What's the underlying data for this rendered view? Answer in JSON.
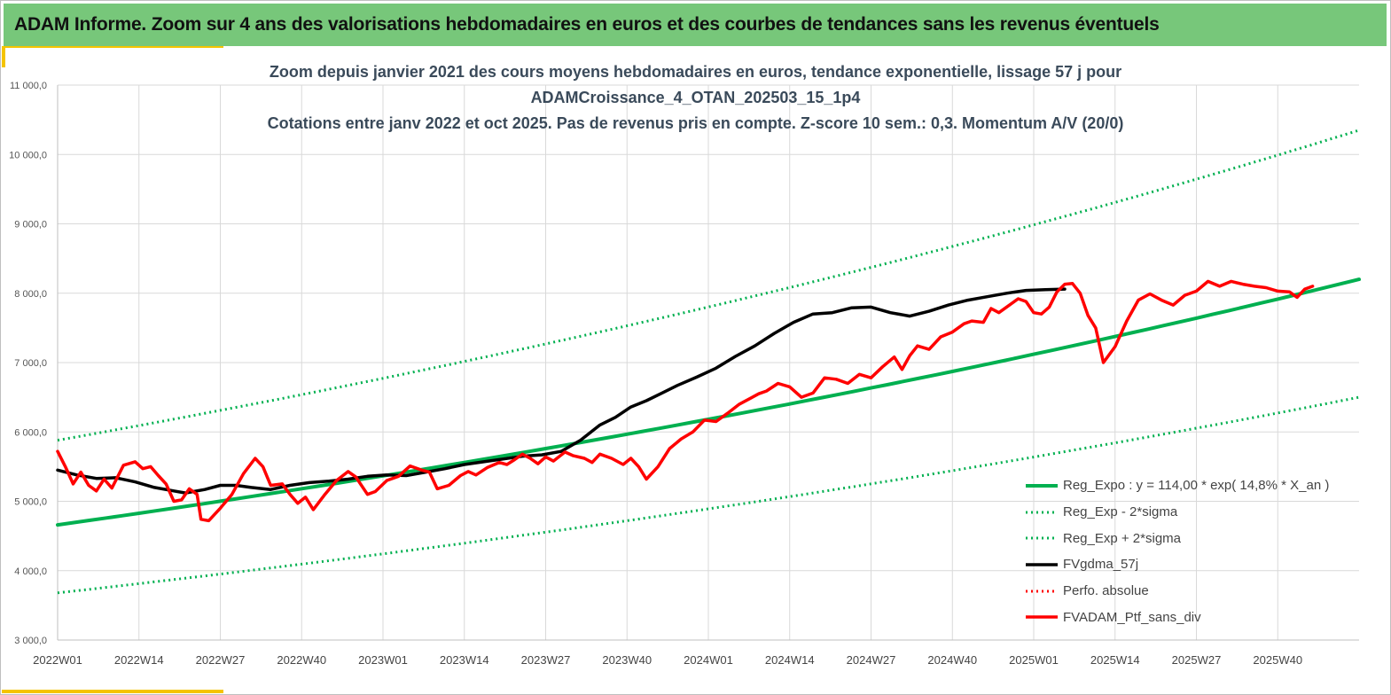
{
  "header": {
    "title": "ADAM Informe. Zoom sur 4 ans des valorisations hebdomadaires en euros et des courbes de tendances sans les revenus éventuels"
  },
  "colors": {
    "banner": "#77c77a",
    "trend": "#00b050",
    "smooth": "#000000",
    "portfolio": "#ff0000",
    "accent": "#f5c400"
  },
  "chart_data": {
    "type": "line",
    "title_lines": [
      "Zoom depuis janvier 2021 des cours moyens hebdomadaires  en euros, tendance exponentielle, lissage 57 j pour",
      "ADAMCroissance_4_OTAN_202503_15_1p4",
      "Cotations  entre janv 2022 et oct 2025. Pas de revenus pris en compte. Z-score 10 sem.: 0,3. Momentum A/V (20/0)"
    ],
    "x_ticks": [
      "2022W01",
      "2022W14",
      "2022W27",
      "2022W40",
      "2023W01",
      "2023W14",
      "2023W27",
      "2023W40",
      "2024W01",
      "2024W14",
      "2024W27",
      "2024W40",
      "2025W01",
      "2025W14",
      "2025W27",
      "2025W40"
    ],
    "x_range_weeks": [
      0,
      201
    ],
    "y_ticks": [
      "3 000,0",
      "4 000,0",
      "5 000,0",
      "6 000,0",
      "7 000,0",
      "8 000,0",
      "9 000,0",
      "10 000,0",
      "11 000,0"
    ],
    "ylim": [
      3000,
      11000
    ],
    "grid": true,
    "legend_position": "bottom-right",
    "series": [
      {
        "name": "Reg_Expo : y = 114,00 * exp( 14,8% *  X_an )",
        "style": "solid-green",
        "start": 4660,
        "end": 8200
      },
      {
        "name": "Reg_Exp - 2*sigma",
        "style": "dotted-green",
        "start": 3680,
        "end": 6500
      },
      {
        "name": "Reg_Exp + 2*sigma",
        "style": "dotted-green",
        "start": 5880,
        "end": 10350
      },
      {
        "name": "FVgdma_57j",
        "style": "solid-black",
        "points": [
          [
            0,
            5450
          ],
          [
            5,
            5380
          ],
          [
            10,
            5330
          ],
          [
            15,
            5340
          ],
          [
            20,
            5280
          ],
          [
            25,
            5200
          ],
          [
            30,
            5150
          ],
          [
            33,
            5120
          ],
          [
            38,
            5170
          ],
          [
            42,
            5230
          ],
          [
            46,
            5230
          ],
          [
            50,
            5200
          ],
          [
            55,
            5170
          ],
          [
            60,
            5230
          ],
          [
            65,
            5270
          ],
          [
            70,
            5290
          ],
          [
            75,
            5320
          ],
          [
            80,
            5360
          ],
          [
            85,
            5380
          ],
          [
            90,
            5370
          ],
          [
            95,
            5420
          ],
          [
            100,
            5470
          ],
          [
            105,
            5530
          ],
          [
            110,
            5570
          ],
          [
            115,
            5610
          ],
          [
            120,
            5650
          ],
          [
            125,
            5670
          ],
          [
            130,
            5720
          ],
          [
            135,
            5880
          ],
          [
            140,
            6100
          ],
          [
            144,
            6210
          ],
          [
            148,
            6360
          ],
          [
            152,
            6450
          ],
          [
            156,
            6560
          ],
          [
            160,
            6670
          ],
          [
            165,
            6790
          ],
          [
            170,
            6920
          ],
          [
            175,
            7090
          ],
          [
            180,
            7240
          ],
          [
            185,
            7420
          ],
          [
            190,
            7580
          ],
          [
            195,
            7700
          ],
          [
            200,
            7720
          ],
          [
            205,
            7790
          ],
          [
            210,
            7800
          ],
          [
            215,
            7720
          ],
          [
            220,
            7670
          ],
          [
            225,
            7740
          ],
          [
            230,
            7830
          ],
          [
            235,
            7900
          ],
          [
            240,
            7950
          ],
          [
            245,
            8000
          ],
          [
            250,
            8040
          ],
          [
            255,
            8050
          ],
          [
            260,
            8060
          ]
        ]
      },
      {
        "name": "Perfo. absolue",
        "style": "dotted-red",
        "points": []
      },
      {
        "name": "FVADAM_Ptf_sans_div",
        "style": "solid-red",
        "points": [
          [
            0,
            5720
          ],
          [
            2,
            5500
          ],
          [
            4,
            5250
          ],
          [
            6,
            5420
          ],
          [
            8,
            5230
          ],
          [
            10,
            5150
          ],
          [
            12,
            5320
          ],
          [
            14,
            5190
          ],
          [
            17,
            5520
          ],
          [
            20,
            5570
          ],
          [
            22,
            5470
          ],
          [
            24,
            5500
          ],
          [
            26,
            5370
          ],
          [
            28,
            5250
          ],
          [
            30,
            5000
          ],
          [
            32,
            5020
          ],
          [
            34,
            5180
          ],
          [
            36,
            5100
          ],
          [
            37,
            4740
          ],
          [
            39,
            4720
          ],
          [
            42,
            4900
          ],
          [
            45,
            5100
          ],
          [
            48,
            5400
          ],
          [
            51,
            5620
          ],
          [
            53,
            5500
          ],
          [
            55,
            5230
          ],
          [
            58,
            5250
          ],
          [
            60,
            5100
          ],
          [
            62,
            4970
          ],
          [
            64,
            5060
          ],
          [
            66,
            4880
          ],
          [
            69,
            5100
          ],
          [
            72,
            5300
          ],
          [
            75,
            5430
          ],
          [
            77,
            5350
          ],
          [
            80,
            5100
          ],
          [
            82,
            5140
          ],
          [
            85,
            5300
          ],
          [
            88,
            5360
          ],
          [
            91,
            5510
          ],
          [
            94,
            5450
          ],
          [
            96,
            5420
          ],
          [
            98,
            5180
          ],
          [
            101,
            5230
          ],
          [
            104,
            5370
          ],
          [
            106,
            5430
          ],
          [
            108,
            5380
          ],
          [
            111,
            5490
          ],
          [
            114,
            5560
          ],
          [
            116,
            5530
          ],
          [
            118,
            5600
          ],
          [
            120,
            5680
          ],
          [
            122,
            5620
          ],
          [
            124,
            5540
          ],
          [
            126,
            5640
          ],
          [
            128,
            5580
          ],
          [
            131,
            5710
          ],
          [
            133,
            5660
          ],
          [
            136,
            5620
          ],
          [
            138,
            5560
          ],
          [
            140,
            5680
          ],
          [
            143,
            5620
          ],
          [
            146,
            5530
          ],
          [
            148,
            5620
          ],
          [
            150,
            5500
          ],
          [
            152,
            5320
          ],
          [
            155,
            5500
          ],
          [
            158,
            5760
          ],
          [
            161,
            5900
          ],
          [
            164,
            6000
          ],
          [
            167,
            6170
          ],
          [
            170,
            6150
          ],
          [
            173,
            6270
          ],
          [
            176,
            6400
          ],
          [
            179,
            6490
          ],
          [
            181,
            6550
          ],
          [
            183,
            6590
          ],
          [
            186,
            6700
          ],
          [
            189,
            6650
          ],
          [
            192,
            6500
          ],
          [
            195,
            6560
          ],
          [
            198,
            6780
          ],
          [
            201,
            6760
          ],
          [
            204,
            6700
          ],
          [
            207,
            6830
          ],
          [
            210,
            6780
          ],
          [
            213,
            6940
          ],
          [
            216,
            7080
          ],
          [
            218,
            6900
          ],
          [
            220,
            7100
          ],
          [
            222,
            7240
          ],
          [
            225,
            7190
          ],
          [
            228,
            7370
          ],
          [
            231,
            7440
          ],
          [
            234,
            7560
          ],
          [
            236,
            7600
          ],
          [
            239,
            7580
          ],
          [
            241,
            7780
          ],
          [
            243,
            7720
          ],
          [
            245,
            7800
          ],
          [
            248,
            7920
          ],
          [
            250,
            7880
          ],
          [
            252,
            7720
          ],
          [
            254,
            7700
          ],
          [
            256,
            7800
          ],
          [
            258,
            8020
          ],
          [
            260,
            8130
          ],
          [
            262,
            8140
          ],
          [
            264,
            8000
          ],
          [
            266,
            7680
          ],
          [
            268,
            7500
          ],
          [
            270,
            7000
          ],
          [
            273,
            7230
          ],
          [
            276,
            7600
          ],
          [
            279,
            7900
          ],
          [
            282,
            7990
          ],
          [
            285,
            7900
          ],
          [
            288,
            7830
          ],
          [
            291,
            7970
          ],
          [
            294,
            8030
          ],
          [
            297,
            8170
          ],
          [
            300,
            8100
          ],
          [
            303,
            8170
          ],
          [
            306,
            8130
          ],
          [
            309,
            8100
          ],
          [
            312,
            8080
          ],
          [
            315,
            8030
          ],
          [
            318,
            8020
          ],
          [
            320,
            7940
          ],
          [
            322,
            8060
          ],
          [
            324,
            8100
          ]
        ]
      }
    ]
  }
}
